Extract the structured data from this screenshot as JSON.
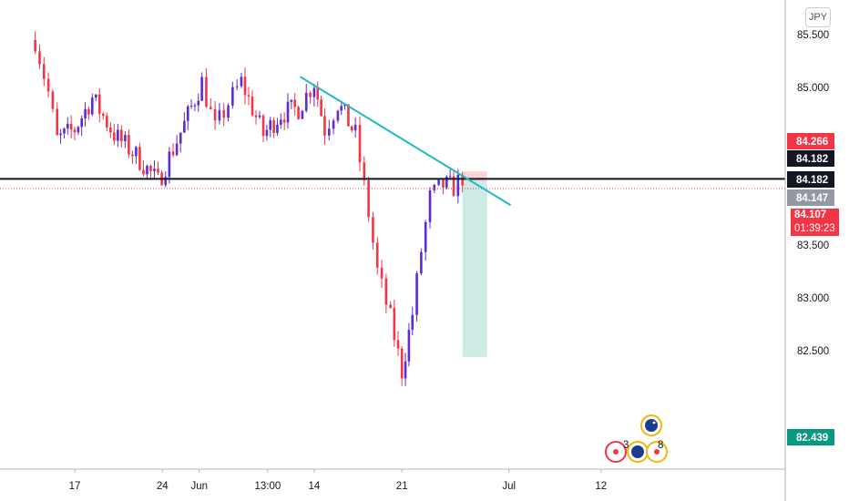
{
  "instrument": {
    "currency": "JPY"
  },
  "chart_data": {
    "type": "candlestick",
    "title": "",
    "ylim": [
      82.2,
      85.7
    ],
    "y_ticks": [
      "85.500",
      "85.000",
      "83.500",
      "83.000",
      "82.500"
    ],
    "y_tick_values": [
      85.5,
      85.0,
      83.5,
      83.0,
      82.5
    ],
    "x_ticks": [
      "17",
      "24",
      "Jun",
      "13:00",
      "14",
      "21",
      "Jul",
      "12"
    ],
    "x_tick_positions": [
      0.0,
      1.0,
      1.42,
      2.2,
      2.73,
      3.73,
      4.95,
      6.0
    ],
    "price_labels": [
      {
        "value": "84.266",
        "price": 84.266,
        "color": "#f23645"
      },
      {
        "value": "84.182",
        "price": 84.182,
        "color": "#131722"
      },
      {
        "value": "84.182",
        "price": 84.182,
        "color": "#131722"
      },
      {
        "value": "84.147",
        "price": 84.147,
        "color": "#9598a1"
      },
      {
        "value": "82.439",
        "price": 82.439,
        "color": "#089981"
      }
    ],
    "current_price": {
      "value": "84.107",
      "timer": "01:39:23",
      "price": 84.107,
      "color": "#f23645"
    },
    "horizontal_line": {
      "price": 84.13,
      "color": "#131722"
    },
    "trendline": {
      "from": [
        2.57,
        85.1
      ],
      "to": [
        4.97,
        83.88
      ],
      "color": "#22b8c9"
    },
    "short_position": {
      "x_from": 4.42,
      "x_to": 4.7,
      "entry": 84.107,
      "stop": 84.2,
      "target": 82.439
    },
    "anchors": [
      [
        -0.45,
        85.45
      ],
      [
        -0.3,
        84.95
      ],
      [
        -0.2,
        84.5
      ],
      [
        0.0,
        84.6
      ],
      [
        0.2,
        84.9
      ],
      [
        0.45,
        84.55
      ],
      [
        0.7,
        84.35
      ],
      [
        0.95,
        84.1
      ],
      [
        1.25,
        84.65
      ],
      [
        1.45,
        85.05
      ],
      [
        1.6,
        84.6
      ],
      [
        1.75,
        84.85
      ],
      [
        1.9,
        85.05
      ],
      [
        2.15,
        84.55
      ],
      [
        2.35,
        84.75
      ],
      [
        2.55,
        84.8
      ],
      [
        2.73,
        85.05
      ],
      [
        2.85,
        84.6
      ],
      [
        3.0,
        84.85
      ],
      [
        3.2,
        84.55
      ],
      [
        3.35,
        83.8
      ],
      [
        3.45,
        83.25
      ],
      [
        3.6,
        82.8
      ],
      [
        3.73,
        82.3
      ],
      [
        3.85,
        82.85
      ],
      [
        3.95,
        83.45
      ],
      [
        4.05,
        83.95
      ],
      [
        4.2,
        84.07
      ],
      [
        4.32,
        84.05
      ],
      [
        4.42,
        84.15
      ],
      [
        4.47,
        84.11
      ]
    ]
  }
}
